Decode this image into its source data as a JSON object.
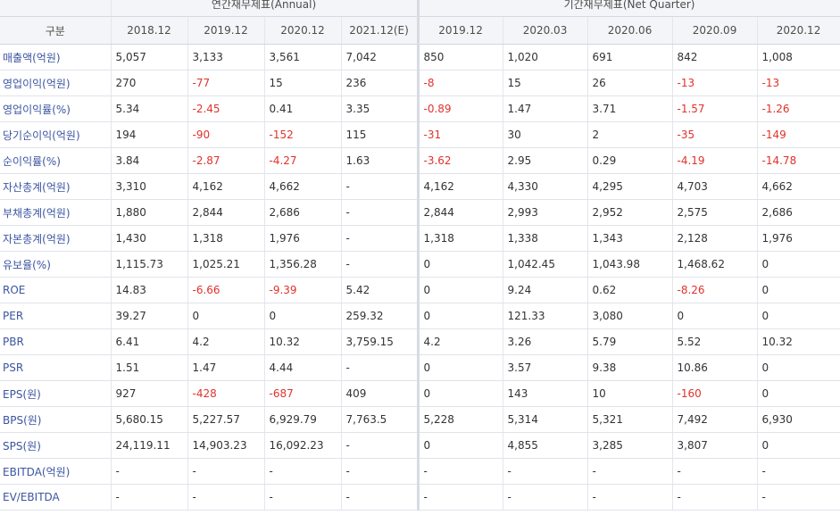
{
  "header": {
    "annual_title": "연간재무제표(Annual)",
    "quarter_title": "기간재무제표(Net Quarter)",
    "label_header": "구분",
    "periods": [
      "2018.12",
      "2019.12",
      "2020.12",
      "2021.12(E)",
      "2019.12",
      "2020.03",
      "2020.06",
      "2020.09",
      "2020.12"
    ]
  },
  "colors": {
    "negative": "#e0322b",
    "label": "#3b55a0",
    "header_bg": "#f4f5f8"
  },
  "rows": [
    {
      "label": "매출액(억원)",
      "values": [
        "5,057",
        "3,133",
        "3,561",
        "7,042",
        "850",
        "1,020",
        "691",
        "842",
        "1,008"
      ]
    },
    {
      "label": "영업이익(억원)",
      "values": [
        "270",
        "-77",
        "15",
        "236",
        "-8",
        "15",
        "26",
        "-13",
        "-13"
      ]
    },
    {
      "label": "영업이익률(%)",
      "values": [
        "5.34",
        "-2.45",
        "0.41",
        "3.35",
        "-0.89",
        "1.47",
        "3.71",
        "-1.57",
        "-1.26"
      ]
    },
    {
      "label": "당기순이익(억원)",
      "values": [
        "194",
        "-90",
        "-152",
        "115",
        "-31",
        "30",
        "2",
        "-35",
        "-149"
      ]
    },
    {
      "label": "순이익률(%)",
      "values": [
        "3.84",
        "-2.87",
        "-4.27",
        "1.63",
        "-3.62",
        "2.95",
        "0.29",
        "-4.19",
        "-14.78"
      ]
    },
    {
      "label": "자산총계(억원)",
      "values": [
        "3,310",
        "4,162",
        "4,662",
        "-",
        "4,162",
        "4,330",
        "4,295",
        "4,703",
        "4,662"
      ]
    },
    {
      "label": "부채총계(억원)",
      "values": [
        "1,880",
        "2,844",
        "2,686",
        "-",
        "2,844",
        "2,993",
        "2,952",
        "2,575",
        "2,686"
      ]
    },
    {
      "label": "자본총계(억원)",
      "values": [
        "1,430",
        "1,318",
        "1,976",
        "-",
        "1,318",
        "1,338",
        "1,343",
        "2,128",
        "1,976"
      ]
    },
    {
      "label": "유보율(%)",
      "values": [
        "1,115.73",
        "1,025.21",
        "1,356.28",
        "-",
        "0",
        "1,042.45",
        "1,043.98",
        "1,468.62",
        "0"
      ]
    },
    {
      "label": "ROE",
      "values": [
        "14.83",
        "-6.66",
        "-9.39",
        "5.42",
        "0",
        "9.24",
        "0.62",
        "-8.26",
        "0"
      ]
    },
    {
      "label": "PER",
      "values": [
        "39.27",
        "0",
        "0",
        "259.32",
        "0",
        "121.33",
        "3,080",
        "0",
        "0"
      ]
    },
    {
      "label": "PBR",
      "values": [
        "6.41",
        "4.2",
        "10.32",
        "3,759.15",
        "4.2",
        "3.26",
        "5.79",
        "5.52",
        "10.32"
      ]
    },
    {
      "label": "PSR",
      "values": [
        "1.51",
        "1.47",
        "4.44",
        "-",
        "0",
        "3.57",
        "9.38",
        "10.86",
        "0"
      ]
    },
    {
      "label": "EPS(원)",
      "values": [
        "927",
        "-428",
        "-687",
        "409",
        "0",
        "143",
        "10",
        "-160",
        "0"
      ]
    },
    {
      "label": "BPS(원)",
      "values": [
        "5,680.15",
        "5,227.57",
        "6,929.79",
        "7,763.5",
        "5,228",
        "5,314",
        "5,321",
        "7,492",
        "6,930"
      ]
    },
    {
      "label": "SPS(원)",
      "values": [
        "24,119.11",
        "14,903.23",
        "16,092.23",
        "-",
        "0",
        "4,855",
        "3,285",
        "3,807",
        "0"
      ]
    },
    {
      "label": "EBITDA(억원)",
      "values": [
        "-",
        "-",
        "-",
        "-",
        "-",
        "-",
        "-",
        "-",
        "-"
      ]
    },
    {
      "label": "EV/EBITDA",
      "values": [
        "-",
        "-",
        "-",
        "-",
        "-",
        "-",
        "-",
        "-",
        "-"
      ]
    }
  ]
}
